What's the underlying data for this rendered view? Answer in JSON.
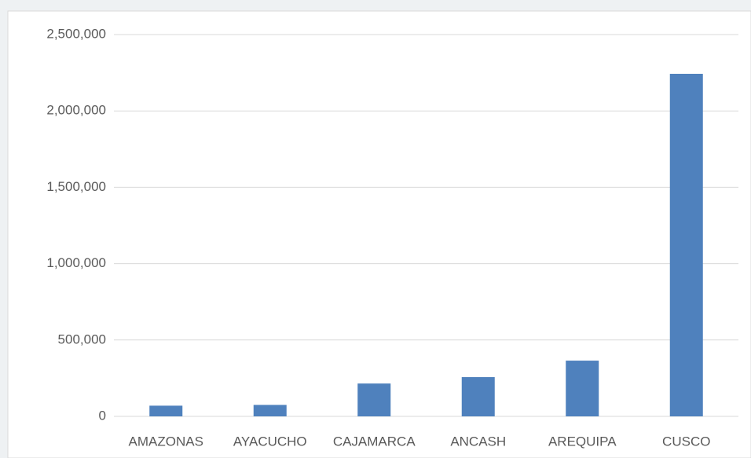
{
  "chart_data": {
    "type": "bar",
    "categories": [
      "AMAZONAS",
      "AYACUCHO",
      "CAJAMARCA",
      "ANCASH",
      "AREQUIPA",
      "CUSCO"
    ],
    "values": [
      70000,
      75000,
      215000,
      257000,
      365000,
      2243000
    ],
    "color": "#4f81bd",
    "ylim": [
      0,
      2500000
    ],
    "yticks": [
      0,
      {
        "value": 500000,
        "label": "500,000"
      },
      {
        "value": 1000000,
        "label": "1,000,000"
      },
      {
        "value": 1500000,
        "label": "1,500,000"
      },
      {
        "value": 2000000,
        "label": "2,000,000"
      },
      {
        "value": 2500000,
        "label": "2,500,000"
      }
    ],
    "grid": true
  }
}
